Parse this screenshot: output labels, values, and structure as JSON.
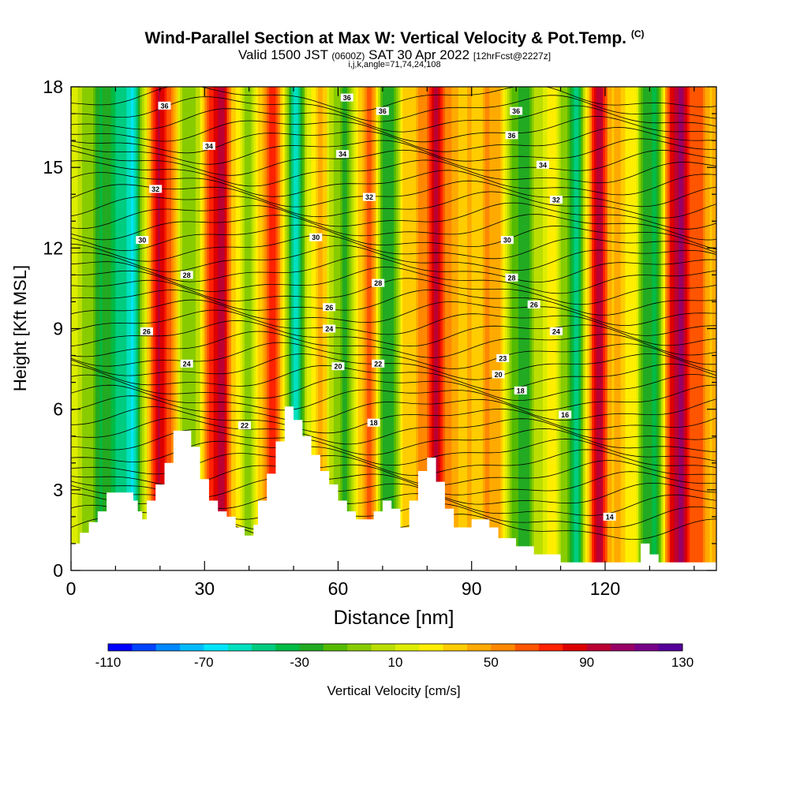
{
  "header": {
    "title": "Wind-Parallel Section at Max W: Vertical Velocity & Pot.Temp.",
    "copyright": "(C)",
    "valid_prefix": "Valid 1500 JST",
    "valid_utc": "(0600Z)",
    "valid_date": "SAT 30 Apr 2022",
    "forecast": "[12hrFcst@2227z]",
    "params": "i,j,k,angle=71,74,24,108"
  },
  "chart_data": {
    "type": "heatmap",
    "xlabel": "Distance [nm]",
    "ylabel": "Height [Kft MSL]",
    "xlim": [
      0,
      145
    ],
    "ylim": [
      0,
      18
    ],
    "x_ticks": [
      0,
      30,
      60,
      90,
      120
    ],
    "y_ticks": [
      0,
      3,
      6,
      9,
      12,
      15,
      18
    ],
    "colorbar": {
      "label": "Vertical Velocity [cm/s]",
      "range": [
        -110,
        130
      ],
      "step": 10,
      "tick_labels": [
        "-110",
        "-70",
        "-30",
        "10",
        "50",
        "90",
        "130"
      ],
      "colors": [
        "#0000ff",
        "#0044ff",
        "#0088ff",
        "#00bbff",
        "#00e5ff",
        "#00e0c0",
        "#00cc80",
        "#00bb44",
        "#22aa22",
        "#55bb00",
        "#88cc00",
        "#bbdd00",
        "#dded00",
        "#ffee00",
        "#ffcc00",
        "#ffaa00",
        "#ff8800",
        "#ff5500",
        "#ff2200",
        "#dd0000",
        "#bb0033",
        "#990066",
        "#770088",
        "#550099"
      ]
    },
    "updraft_columns": [
      {
        "x": 3,
        "w": 6.0,
        "amp": 4
      },
      {
        "x": 8,
        "w": 4.5,
        "amp": -40
      },
      {
        "x": 14,
        "w": 3.2,
        "amp": -65
      },
      {
        "x": 20,
        "w": 4.0,
        "amp": 80
      },
      {
        "x": 27,
        "w": 3.5,
        "amp": -30
      },
      {
        "x": 33,
        "w": 4.0,
        "amp": 85
      },
      {
        "x": 39,
        "w": 3.0,
        "amp": -20
      },
      {
        "x": 46,
        "w": 3.8,
        "amp": 70
      },
      {
        "x": 50,
        "w": 2.8,
        "amp": -80
      },
      {
        "x": 56,
        "w": 3.5,
        "amp": 35
      },
      {
        "x": 61,
        "w": 3.5,
        "amp": -35
      },
      {
        "x": 67,
        "w": 3.0,
        "amp": 60
      },
      {
        "x": 71,
        "w": 2.8,
        "amp": -55
      },
      {
        "x": 76,
        "w": 3.5,
        "amp": 30
      },
      {
        "x": 82,
        "w": 3.0,
        "amp": 75
      },
      {
        "x": 88,
        "w": 4.0,
        "amp": 25
      },
      {
        "x": 95,
        "w": 3.5,
        "amp": 40
      },
      {
        "x": 101,
        "w": 3.5,
        "amp": -40
      },
      {
        "x": 108,
        "w": 3.5,
        "amp": 15
      },
      {
        "x": 114,
        "w": 3.2,
        "amp": -60
      },
      {
        "x": 118,
        "w": 2.8,
        "amp": 95
      },
      {
        "x": 124,
        "w": 3.2,
        "amp": 25
      },
      {
        "x": 131,
        "w": 3.0,
        "amp": -55
      },
      {
        "x": 136,
        "w": 3.5,
        "amp": 90
      },
      {
        "x": 142,
        "w": 4.0,
        "amp": 40
      }
    ],
    "terrain": [
      [
        0,
        1
      ],
      [
        2,
        1
      ],
      [
        2,
        1.4
      ],
      [
        4,
        1.4
      ],
      [
        4,
        1.8
      ],
      [
        6,
        1.8
      ],
      [
        6,
        2.2
      ],
      [
        8,
        2.2
      ],
      [
        8,
        2.9
      ],
      [
        14,
        2.9
      ],
      [
        14,
        2.6
      ],
      [
        15,
        2.6
      ],
      [
        15,
        2.2
      ],
      [
        16,
        2.2
      ],
      [
        16,
        1.9
      ],
      [
        17,
        1.9
      ],
      [
        17,
        2.6
      ],
      [
        19,
        2.6
      ],
      [
        19,
        3.2
      ],
      [
        21,
        3.2
      ],
      [
        21,
        4.0
      ],
      [
        23,
        4.0
      ],
      [
        23,
        5.2
      ],
      [
        27,
        5.2
      ],
      [
        27,
        4.6
      ],
      [
        29,
        4.6
      ],
      [
        29,
        3.4
      ],
      [
        31,
        3.4
      ],
      [
        31,
        2.6
      ],
      [
        33,
        2.6
      ],
      [
        33,
        2.2
      ],
      [
        35,
        2.2
      ],
      [
        35,
        2.0
      ],
      [
        37,
        2.0
      ],
      [
        37,
        1.6
      ],
      [
        39,
        1.6
      ],
      [
        39,
        1.3
      ],
      [
        41,
        1.3
      ],
      [
        41,
        1.7
      ],
      [
        42,
        1.7
      ],
      [
        42,
        2.6
      ],
      [
        44,
        2.6
      ],
      [
        44,
        3.6
      ],
      [
        46,
        3.6
      ],
      [
        46,
        4.8
      ],
      [
        48,
        4.8
      ],
      [
        48,
        6.1
      ],
      [
        50,
        6.1
      ],
      [
        50,
        5.6
      ],
      [
        52,
        5.6
      ],
      [
        52,
        5.0
      ],
      [
        54,
        5.0
      ],
      [
        54,
        4.3
      ],
      [
        56,
        4.3
      ],
      [
        56,
        3.7
      ],
      [
        58,
        3.7
      ],
      [
        58,
        3.2
      ],
      [
        60,
        3.2
      ],
      [
        60,
        2.6
      ],
      [
        62,
        2.6
      ],
      [
        62,
        2.2
      ],
      [
        64,
        2.2
      ],
      [
        64,
        1.9
      ],
      [
        68,
        1.9
      ],
      [
        68,
        2.2
      ],
      [
        70,
        2.2
      ],
      [
        70,
        2.6
      ],
      [
        72,
        2.6
      ],
      [
        72,
        2.3
      ],
      [
        74,
        2.3
      ],
      [
        74,
        1.6
      ],
      [
        76,
        1.6
      ],
      [
        76,
        2.6
      ],
      [
        78,
        2.6
      ],
      [
        78,
        3.7
      ],
      [
        80,
        3.7
      ],
      [
        80,
        4.2
      ],
      [
        82,
        4.2
      ],
      [
        82,
        3.3
      ],
      [
        84,
        3.3
      ],
      [
        84,
        2.3
      ],
      [
        86,
        2.3
      ],
      [
        86,
        1.6
      ],
      [
        90,
        1.6
      ],
      [
        90,
        1.9
      ],
      [
        94,
        1.9
      ],
      [
        94,
        1.6
      ],
      [
        96,
        1.6
      ],
      [
        96,
        1.2
      ],
      [
        100,
        1.2
      ],
      [
        100,
        0.9
      ],
      [
        104,
        0.9
      ],
      [
        104,
        0.6
      ],
      [
        110,
        0.6
      ],
      [
        110,
        0.3
      ],
      [
        128,
        0.3
      ],
      [
        128,
        1.0
      ],
      [
        130,
        1.0
      ],
      [
        130,
        0.6
      ],
      [
        132,
        0.6
      ],
      [
        132,
        0.3
      ],
      [
        145,
        0.3
      ]
    ],
    "theta_contour_heights_kft": [
      1.6,
      2.0,
      2.4,
      2.8,
      3.2,
      3.6,
      4.0,
      4.4,
      4.8,
      5.2,
      5.6,
      6.0,
      6.4,
      6.8,
      7.2,
      7.6,
      8.0,
      8.4,
      8.8,
      9.2,
      9.6,
      10.0,
      10.4,
      10.8,
      11.2,
      11.6,
      12.0,
      12.4,
      12.8,
      13.2,
      13.6,
      14.0,
      14.4,
      14.8,
      15.2,
      15.6,
      16.0,
      16.4,
      16.8,
      17.2,
      17.6
    ],
    "contour_labels": [
      {
        "text": "36",
        "x": 21,
        "y": 17.3
      },
      {
        "text": "34",
        "x": 31,
        "y": 15.8
      },
      {
        "text": "32",
        "x": 19,
        "y": 14.2
      },
      {
        "text": "30",
        "x": 16,
        "y": 12.3
      },
      {
        "text": "28",
        "x": 26,
        "y": 11.0
      },
      {
        "text": "26",
        "x": 17,
        "y": 8.9
      },
      {
        "text": "24",
        "x": 26,
        "y": 7.7
      },
      {
        "text": "22",
        "x": 39,
        "y": 5.4
      },
      {
        "text": "36",
        "x": 62,
        "y": 17.6
      },
      {
        "text": "36",
        "x": 70,
        "y": 17.1
      },
      {
        "text": "34",
        "x": 61,
        "y": 15.5
      },
      {
        "text": "32",
        "x": 67,
        "y": 13.9
      },
      {
        "text": "30",
        "x": 55,
        "y": 12.4
      },
      {
        "text": "28",
        "x": 69,
        "y": 10.7
      },
      {
        "text": "26",
        "x": 58,
        "y": 9.8
      },
      {
        "text": "24",
        "x": 58,
        "y": 9.0
      },
      {
        "text": "20",
        "x": 60,
        "y": 7.6
      },
      {
        "text": "22",
        "x": 69,
        "y": 7.7
      },
      {
        "text": "18",
        "x": 68,
        "y": 5.5
      },
      {
        "text": "36",
        "x": 100,
        "y": 17.1
      },
      {
        "text": "36",
        "x": 99,
        "y": 16.2
      },
      {
        "text": "34",
        "x": 106,
        "y": 15.1
      },
      {
        "text": "32",
        "x": 109,
        "y": 13.8
      },
      {
        "text": "30",
        "x": 98,
        "y": 12.3
      },
      {
        "text": "28",
        "x": 99,
        "y": 10.9
      },
      {
        "text": "26",
        "x": 104,
        "y": 9.9
      },
      {
        "text": "24",
        "x": 109,
        "y": 8.9
      },
      {
        "text": "23",
        "x": 97,
        "y": 7.9
      },
      {
        "text": "20",
        "x": 96,
        "y": 7.3
      },
      {
        "text": "18",
        "x": 101,
        "y": 6.7
      },
      {
        "text": "16",
        "x": 111,
        "y": 5.8
      },
      {
        "text": "14",
        "x": 121,
        "y": 2.0
      }
    ]
  }
}
